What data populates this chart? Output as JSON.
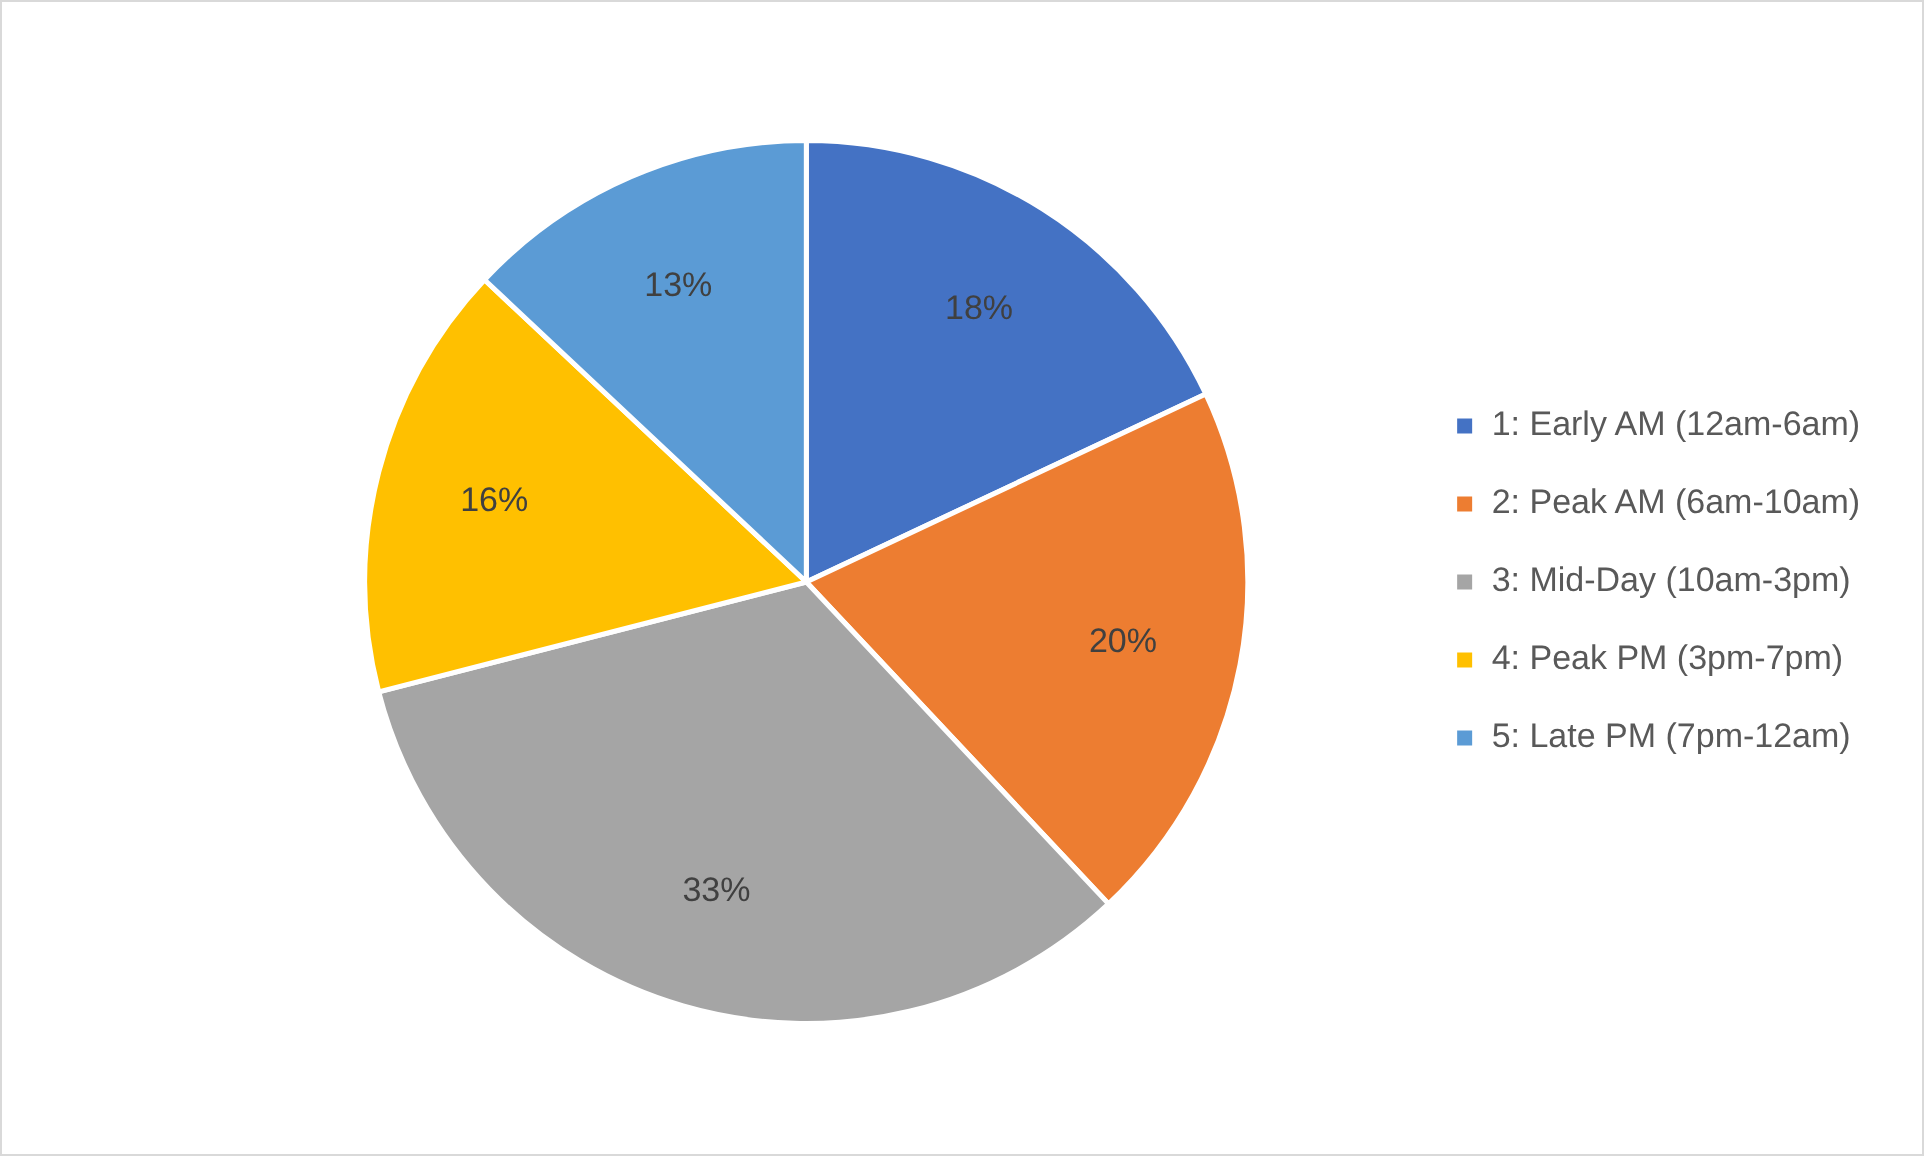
{
  "chart_data": {
    "type": "pie",
    "categories": [
      "1: Early AM (12am-6am)",
      "2: Peak AM (6am-10am)",
      "3: Mid-Day (10am-3pm)",
      "4: Peak PM (3pm-7pm)",
      "5: Late PM (7pm-12am)"
    ],
    "values": [
      18,
      20,
      33,
      16,
      13
    ],
    "colors": [
      "#4472c4",
      "#ed7d31",
      "#a5a5a5",
      "#ffc000",
      "#5b9bd5"
    ],
    "value_labels": [
      "18%",
      "20%",
      "33%",
      "16%",
      "13%"
    ],
    "legend": "right"
  }
}
